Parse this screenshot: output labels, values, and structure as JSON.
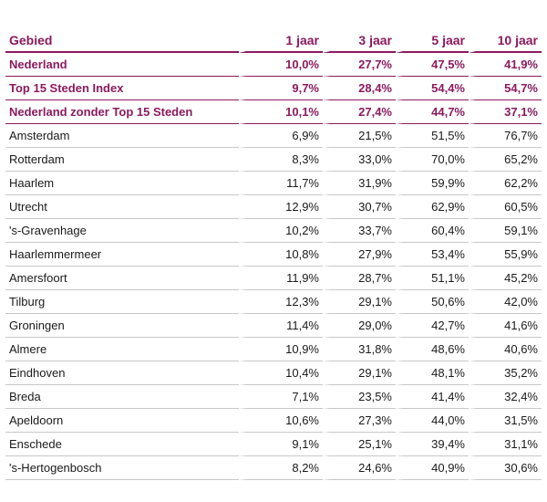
{
  "columns": [
    "Gebied",
    "1 jaar",
    "3 jaar",
    "5 jaar",
    "10 jaar"
  ],
  "summary_rows": [
    {
      "name": "Nederland",
      "values": [
        "10,0%",
        "27,7%",
        "47,5%",
        "41,9%"
      ]
    },
    {
      "name": "Top 15 Steden Index",
      "values": [
        "9,7%",
        "28,4%",
        "54,4%",
        "54,7%"
      ]
    },
    {
      "name": "Nederland zonder Top 15 Steden",
      "values": [
        "10,1%",
        "27,4%",
        "44,7%",
        "37,1%"
      ]
    }
  ],
  "rows": [
    {
      "name": "Amsterdam",
      "values": [
        "6,9%",
        "21,5%",
        "51,5%",
        "76,7%"
      ]
    },
    {
      "name": "Rotterdam",
      "values": [
        "8,3%",
        "33,0%",
        "70,0%",
        "65,2%"
      ]
    },
    {
      "name": "Haarlem",
      "values": [
        "11,7%",
        "31,9%",
        "59,9%",
        "62,2%"
      ]
    },
    {
      "name": "Utrecht",
      "values": [
        "12,9%",
        "30,7%",
        "62,9%",
        "60,5%"
      ]
    },
    {
      "name": "'s-Gravenhage",
      "values": [
        "10,2%",
        "33,7%",
        "60,4%",
        "59,1%"
      ]
    },
    {
      "name": "Haarlemmermeer",
      "values": [
        "10,8%",
        "27,9%",
        "53,4%",
        "55,9%"
      ]
    },
    {
      "name": "Amersfoort",
      "values": [
        "11,9%",
        "28,7%",
        "51,1%",
        "45,2%"
      ]
    },
    {
      "name": "Tilburg",
      "values": [
        "12,3%",
        "29,1%",
        "50,6%",
        "42,0%"
      ]
    },
    {
      "name": "Groningen",
      "values": [
        "11,4%",
        "29,0%",
        "42,7%",
        "41,6%"
      ]
    },
    {
      "name": "Almere",
      "values": [
        "10,9%",
        "31,8%",
        "48,6%",
        "40,6%"
      ]
    },
    {
      "name": "Eindhoven",
      "values": [
        "10,4%",
        "29,1%",
        "48,1%",
        "35,2%"
      ]
    },
    {
      "name": "Breda",
      "values": [
        "7,1%",
        "23,5%",
        "41,4%",
        "32,4%"
      ]
    },
    {
      "name": "Apeldoorn",
      "values": [
        "10,6%",
        "27,3%",
        "44,0%",
        "31,5%"
      ]
    },
    {
      "name": "Enschede",
      "values": [
        "9,1%",
        "25,1%",
        "39,4%",
        "31,1%"
      ]
    },
    {
      "name": "'s-Hertogenbosch",
      "values": [
        "8,2%",
        "24,6%",
        "40,9%",
        "30,6%"
      ]
    }
  ],
  "colors": {
    "accent": "#8b1a5e",
    "rule": "#c8c8c8",
    "text": "#1a1a1a"
  }
}
